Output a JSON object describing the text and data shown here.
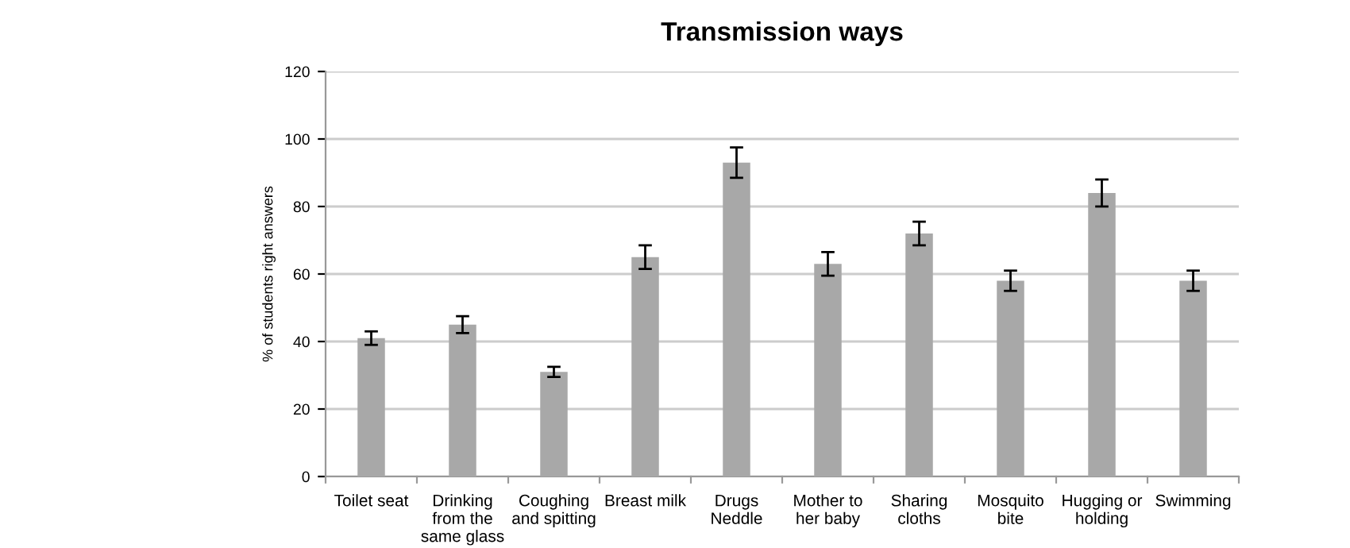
{
  "chart_data": {
    "type": "bar",
    "title": "Transmission ways",
    "ylabel": "% of students right answers",
    "categories": [
      "Toilet seat",
      "Drinking\nfrom the\nsame glass",
      "Coughing\nand spitting",
      "Breast milk",
      "Drugs\nNeddle",
      "Mother to\nher baby",
      "Sharing\ncloths",
      "Mosquito\nbite",
      "Hugging or\nholding",
      "Swimming"
    ],
    "values": [
      41,
      45,
      31,
      65,
      93,
      63,
      72,
      58,
      84,
      58
    ],
    "errors": [
      2,
      2.5,
      1.5,
      3.5,
      4.5,
      3.5,
      3.5,
      3,
      4,
      3
    ],
    "color": "#a8a8a8",
    "ylim": [
      0,
      120
    ],
    "yticks": [
      0,
      20,
      40,
      60,
      80,
      100,
      120
    ],
    "grid": "y"
  }
}
